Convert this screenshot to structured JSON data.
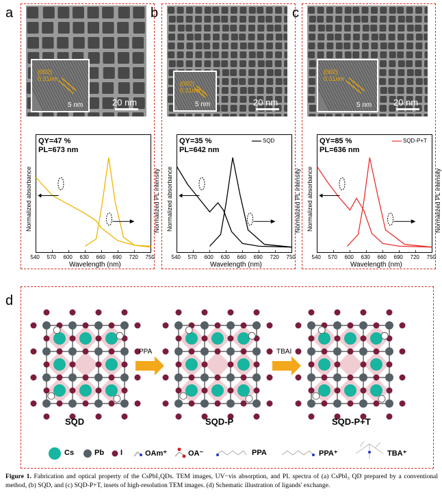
{
  "panels": [
    {
      "letter": "a",
      "qy": "QY=47 %",
      "pl": "PL=673 nm",
      "legend": "",
      "inset_label": "(002)\n0.31nm",
      "inset_scale": "5 nm",
      "scale": "20 nm",
      "color": "#f0b400"
    },
    {
      "letter": "b",
      "qy": "QY=35 %",
      "pl": "PL=642 nm",
      "legend": "SQD",
      "inset_label": "(002)\n0.31nm",
      "inset_scale": "5 nm",
      "scale": "20 nm",
      "color": "#000000"
    },
    {
      "letter": "c",
      "qy": "QY=85 %",
      "pl": "PL=636 nm",
      "legend": "SQD-P+T",
      "inset_label": "(002)\n0.31nm",
      "inset_scale": "5 nm",
      "scale": "20 nm",
      "color": "#e83030"
    }
  ],
  "axes": {
    "xlabel": "Wavelength (nm)",
    "ylabel_left": "Normalized absorbance",
    "ylabel_right": "Normalized PL intensity",
    "ticks": [
      "540",
      "570",
      "600",
      "630",
      "660",
      "690",
      "720",
      "750"
    ]
  },
  "schematic": {
    "letter": "d",
    "labels": [
      "SQD",
      "SQD-P",
      "SQD-P+T"
    ],
    "arrows": [
      "PPA",
      "TBAI"
    ],
    "legend": [
      {
        "symbol": "Cs",
        "label": "Cs",
        "color": "#18b5a0"
      },
      {
        "symbol": "Pb",
        "label": "Pb",
        "color": "#556066"
      },
      {
        "symbol": "I",
        "label": "I",
        "color": "#7a1d3c"
      },
      {
        "symbol": "OAm",
        "label": "OAm⁺"
      },
      {
        "symbol": "OA",
        "label": "OA⁻"
      },
      {
        "symbol": "PPA",
        "label": "PPA"
      },
      {
        "symbol": "PPA+",
        "label": "PPA⁺"
      },
      {
        "symbol": "TBA",
        "label": "TBA⁺"
      }
    ]
  },
  "caption": {
    "bold": "Figure 1.",
    "text": " Fabrication and optical property of the CsPbI₃QDs. TEM images, UV−vis absorption, and PL spectra of (a) CsPbI₃ QD prepared by a conventional method, (b) SQD, and (c) SQD-P+T, insets of high-resolution TEM images. (d) Schematic illustration of ligands' exchange."
  },
  "chart_data": [
    {
      "type": "line",
      "title": "",
      "xlabel": "Wavelength (nm)",
      "ylabel": "Normalized absorbance / Normalized PL intensity",
      "xlim": [
        540,
        750
      ],
      "series": [
        {
          "name": "",
          "kind": "absorbance",
          "x": [
            540,
            570,
            600,
            630,
            650,
            660,
            690,
            720,
            750
          ],
          "y": [
            0.78,
            0.58,
            0.48,
            0.38,
            0.3,
            0.22,
            0.08,
            0.03,
            0.02
          ]
        },
        {
          "name": "",
          "kind": "PL",
          "x": [
            630,
            650,
            660,
            673,
            685,
            700,
            720,
            750
          ],
          "y": [
            0.02,
            0.1,
            0.45,
            1.0,
            0.5,
            0.12,
            0.03,
            0.01
          ]
        }
      ]
    },
    {
      "type": "line",
      "title": "",
      "xlabel": "Wavelength (nm)",
      "ylabel": "Normalized absorbance / Normalized PL intensity",
      "xlim": [
        540,
        750
      ],
      "series": [
        {
          "name": "SQD",
          "kind": "absorbance",
          "x": [
            540,
            560,
            580,
            600,
            615,
            625,
            640,
            660,
            690,
            750
          ],
          "y": [
            0.9,
            0.7,
            0.55,
            0.4,
            0.5,
            0.42,
            0.18,
            0.05,
            0.02,
            0.01
          ]
        },
        {
          "name": "SQD",
          "kind": "PL",
          "x": [
            600,
            620,
            630,
            642,
            655,
            670,
            700,
            750
          ],
          "y": [
            0.02,
            0.15,
            0.5,
            1.0,
            0.6,
            0.2,
            0.04,
            0.01
          ]
        }
      ]
    },
    {
      "type": "line",
      "title": "",
      "xlabel": "Wavelength (nm)",
      "ylabel": "Normalized absorbance / Normalized PL intensity",
      "xlim": [
        540,
        750
      ],
      "series": [
        {
          "name": "SQD-P+T",
          "kind": "absorbance",
          "x": [
            540,
            560,
            580,
            600,
            612,
            625,
            640,
            660,
            690,
            750
          ],
          "y": [
            0.9,
            0.72,
            0.56,
            0.42,
            0.55,
            0.42,
            0.16,
            0.05,
            0.02,
            0.01
          ]
        },
        {
          "name": "SQD-P+T",
          "kind": "PL",
          "x": [
            595,
            615,
            625,
            636,
            650,
            665,
            700,
            750
          ],
          "y": [
            0.02,
            0.15,
            0.5,
            1.0,
            0.6,
            0.2,
            0.04,
            0.01
          ]
        }
      ]
    }
  ]
}
